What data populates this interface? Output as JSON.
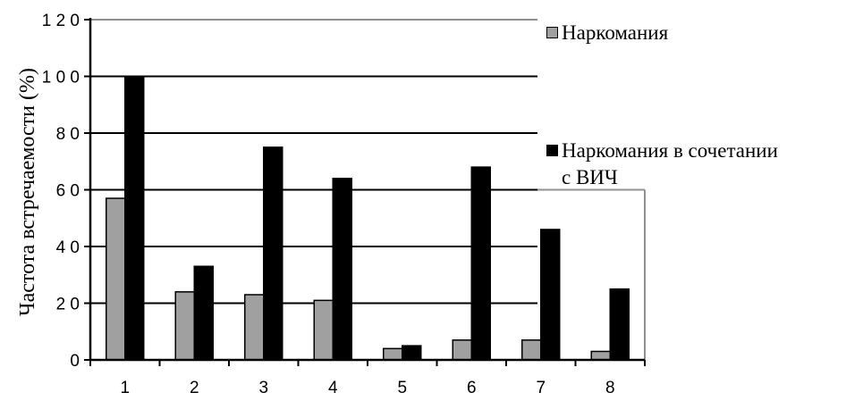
{
  "chart_data": {
    "type": "bar",
    "categories": [
      "1",
      "2",
      "3",
      "4",
      "5",
      "6",
      "7",
      "8"
    ],
    "series": [
      {
        "name": "Наркомания",
        "color": "#a0a0a0",
        "values": [
          57,
          24,
          23,
          21,
          4,
          7,
          7,
          3
        ]
      },
      {
        "name": "Наркомания в сочетании с ВИЧ",
        "color": "#000000",
        "values": [
          100,
          33,
          75,
          64,
          5,
          68,
          46,
          25
        ]
      }
    ],
    "title": "",
    "xlabel": "",
    "ylabel": "Частота встречаемости (%)",
    "ylim": [
      0,
      120
    ],
    "yticks": [
      0,
      20,
      40,
      60,
      80,
      100,
      120
    ],
    "ytick_labels": [
      "0",
      "2 0",
      "4 0",
      "6 0",
      "8 0",
      "1 0 0",
      "1 2 0"
    ],
    "grid": true,
    "legend_placement": "right",
    "legend": [
      {
        "label": "Наркомания",
        "label_lines": [
          "Наркомания"
        ]
      },
      {
        "label": "Наркомания в сочетании с ВИЧ",
        "label_lines": [
          "Наркомания в сочетании",
          "с ВИЧ"
        ]
      }
    ]
  }
}
